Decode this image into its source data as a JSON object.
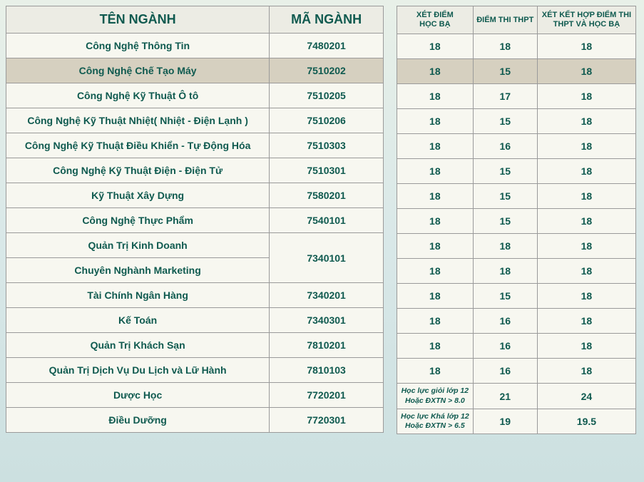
{
  "leftHeaders": {
    "name": "TÊN NGÀNH",
    "code": "MÃ NGÀNH"
  },
  "rightHeaders": {
    "c1a": "XÉT ĐIỂM",
    "c1b": "HỌC BẠ",
    "c2": "ĐIỂM THI THPT",
    "c3a": "XÉT KẾT HỢP ĐIỂM THI",
    "c3b": "THPT VÀ HỌC BẠ"
  },
  "rows": [
    {
      "name": "Công Nghệ Thông Tin",
      "code": "7480201",
      "hocba": "18",
      "thpt": "18",
      "kethop": "18"
    },
    {
      "name": "Công Nghệ Chế Tạo Máy",
      "code": "7510202",
      "hocba": "18",
      "thpt": "15",
      "kethop": "18",
      "hl": true
    },
    {
      "name": "Công Nghệ Kỹ Thuật Ô tô",
      "code": "7510205",
      "hocba": "18",
      "thpt": "17",
      "kethop": "18"
    },
    {
      "name": "Công Nghệ Kỹ Thuật Nhiệt( Nhiệt - Điện Lạnh )",
      "code": "7510206",
      "hocba": "18",
      "thpt": "15",
      "kethop": "18"
    },
    {
      "name": "Công Nghệ Kỹ Thuật Điều Khiển - Tự Động Hóa",
      "code": "7510303",
      "hocba": "18",
      "thpt": "16",
      "kethop": "18"
    },
    {
      "name": "Công Nghệ Kỹ Thuật Điện - Điện Tử",
      "code": "7510301",
      "hocba": "18",
      "thpt": "15",
      "kethop": "18"
    },
    {
      "name": "Kỹ Thuật Xây Dựng",
      "code": "7580201",
      "hocba": "18",
      "thpt": "15",
      "kethop": "18"
    },
    {
      "name": "Công Nghệ Thực Phẩm",
      "code": "7540101",
      "hocba": "18",
      "thpt": "15",
      "kethop": "18"
    },
    {
      "name": "Quản Trị Kinh Doanh",
      "code": "7340101",
      "hocba": "18",
      "thpt": "18",
      "kethop": "18",
      "mergeCodeDown": true
    },
    {
      "name": "Chuyên Nghành Marketing",
      "code": "",
      "hocba": "18",
      "thpt": "18",
      "kethop": "18",
      "codeMerged": true
    },
    {
      "name": "Tài Chính Ngân Hàng",
      "code": "7340201",
      "hocba": "18",
      "thpt": "15",
      "kethop": "18"
    },
    {
      "name": "Kế Toán",
      "code": "7340301",
      "hocba": "18",
      "thpt": "16",
      "kethop": "18"
    },
    {
      "name": "Quản Trị Khách Sạn",
      "code": "7810201",
      "hocba": "18",
      "thpt": "16",
      "kethop": "18"
    },
    {
      "name": "Quản Trị Dịch Vụ Du Lịch và Lữ Hành",
      "code": "7810103",
      "hocba": "18",
      "thpt": "16",
      "kethop": "18"
    },
    {
      "name": "Dược Học",
      "code": "7720201",
      "hocba_note_a": "Học lực giỏi lớp 12",
      "hocba_note_b": "Hoặc ĐXTN > 8.0",
      "thpt": "21",
      "kethop": "24"
    },
    {
      "name": "Điều Dưỡng",
      "code": "7720301",
      "hocba_note_a": "Học lực Khá lớp 12",
      "hocba_note_b": "Hoặc ĐXTN > 6.5",
      "thpt": "19",
      "kethop": "19.5"
    }
  ]
}
